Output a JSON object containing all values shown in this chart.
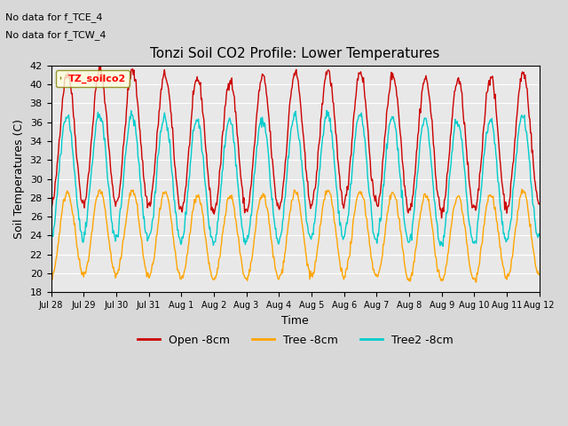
{
  "title": "Tonzi Soil CO2 Profile: Lower Temperatures",
  "xlabel": "Time",
  "ylabel": "Soil Temperatures (C)",
  "ylim": [
    18,
    42
  ],
  "yticks": [
    18,
    20,
    22,
    24,
    26,
    28,
    30,
    32,
    34,
    36,
    38,
    40,
    42
  ],
  "annotations": [
    "No data for f_TCE_4",
    "No data for f_TCW_4"
  ],
  "legend_label": "TZ_soilco2",
  "series": [
    {
      "name": "Open -8cm",
      "color": "#cc0000"
    },
    {
      "name": "Tree -8cm",
      "color": "#ffa500"
    },
    {
      "name": "Tree2 -8cm",
      "color": "#00cccc"
    }
  ],
  "xtick_labels": [
    "Jul 28",
    "Jul 29",
    "Jul 30",
    "Jul 31",
    "Aug 1",
    "Aug 2",
    "Aug 3",
    "Aug 4",
    "Aug 5",
    "Aug 6",
    "Aug 7",
    "Aug 8",
    "Aug 9",
    "Aug 10",
    "Aug 11",
    "Aug 12"
  ],
  "num_days": 15,
  "open_base": 34.0,
  "open_amp": 7.0,
  "tree_base": 24.0,
  "tree_amp": 4.5,
  "tree2_base": 30.0,
  "tree2_amp": 6.5,
  "points_per_day": 48
}
